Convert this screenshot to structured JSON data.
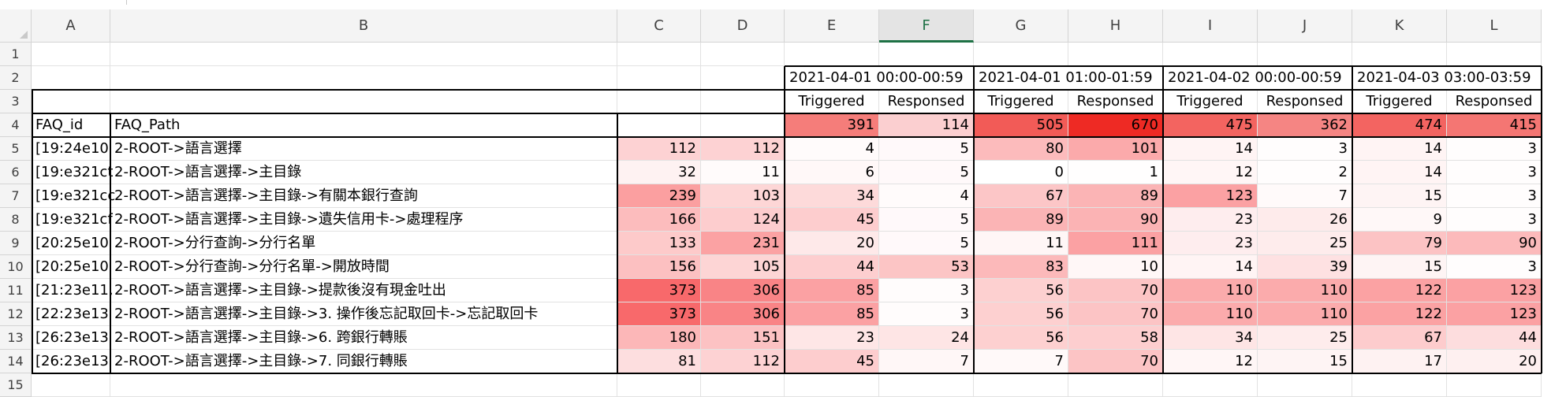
{
  "columns": [
    "A",
    "B",
    "C",
    "D",
    "E",
    "F",
    "G",
    "H",
    "I",
    "J",
    "K",
    "L"
  ],
  "selected_column": "F",
  "row_numbers": [
    "1",
    "2",
    "3",
    "4",
    "5",
    "6",
    "7",
    "8",
    "9",
    "10",
    "11",
    "12",
    "13",
    "14",
    "15"
  ],
  "periods": [
    "2021-04-01 00:00-00:59",
    "2021-04-01 01:00-01:59",
    "2021-04-02 00:00-00:59",
    "2021-04-03 03:00-03:59"
  ],
  "metrics": [
    "Triggered",
    "Responsed"
  ],
  "header": {
    "faq_id": "FAQ_id",
    "faq_path": "FAQ_Path"
  },
  "totals": [
    "391",
    "114",
    "505",
    "670",
    "475",
    "362",
    "474",
    "415"
  ],
  "rows": [
    {
      "id": "[19:24e10",
      "path": "2-ROOT->語言選擇",
      "c": "112",
      "d": "112",
      "vals": [
        "4",
        "5",
        "80",
        "101",
        "14",
        "3",
        "14",
        "3"
      ]
    },
    {
      "id": "[19:e321ct",
      "path": "2-ROOT->語言選擇->主目錄",
      "c": "32",
      "d": "11",
      "vals": [
        "6",
        "5",
        "0",
        "1",
        "12",
        "2",
        "14",
        "3"
      ]
    },
    {
      "id": "[19:e321cc",
      "path": "2-ROOT->語言選擇->主目錄->有關本銀行查詢",
      "c": "239",
      "d": "103",
      "vals": [
        "34",
        "4",
        "67",
        "89",
        "123",
        "7",
        "15",
        "3"
      ]
    },
    {
      "id": "[19:e321cf",
      "path": "2-ROOT->語言選擇->主目錄->遺失信用卡->處理程序",
      "c": "166",
      "d": "124",
      "vals": [
        "45",
        "5",
        "89",
        "90",
        "23",
        "26",
        "9",
        "3"
      ]
    },
    {
      "id": "[20:25e10",
      "path": "2-ROOT->分行查詢->分行名單",
      "c": "133",
      "d": "231",
      "vals": [
        "20",
        "5",
        "11",
        "111",
        "23",
        "25",
        "79",
        "90"
      ]
    },
    {
      "id": "[20:25e10",
      "path": "2-ROOT->分行查詢->分行名單->開放時間",
      "c": "156",
      "d": "105",
      "vals": [
        "44",
        "53",
        "83",
        "10",
        "14",
        "39",
        "15",
        "3"
      ]
    },
    {
      "id": "[21:23e11,",
      "path": "2-ROOT->語言選擇->主目錄->提款後沒有現金吐出",
      "c": "373",
      "d": "306",
      "vals": [
        "85",
        "3",
        "56",
        "70",
        "110",
        "110",
        "122",
        "123"
      ]
    },
    {
      "id": "[22:23e13",
      "path": "2-ROOT->語言選擇->主目錄->3. 操作後忘記取回卡->忘記取回卡",
      "c": "373",
      "d": "306",
      "vals": [
        "85",
        "3",
        "56",
        "70",
        "110",
        "110",
        "122",
        "123"
      ]
    },
    {
      "id": "[26:23e13",
      "path": "2-ROOT->語言選擇->主目錄->6. 跨銀行轉賬",
      "c": "180",
      "d": "151",
      "vals": [
        "23",
        "24",
        "56",
        "58",
        "34",
        "25",
        "67",
        "44"
      ]
    },
    {
      "id": "[26:23e13",
      "path": "2-ROOT->語言選擇->主目錄->7. 同銀行轉賬",
      "c": "81",
      "d": "112",
      "vals": [
        "45",
        "7",
        "7",
        "70",
        "12",
        "15",
        "17",
        "20"
      ]
    }
  ],
  "heat": {
    "low": "#ffffff",
    "high": "#f8696b",
    "totals_low": "#fbcfd0",
    "totals_high": "#ee2a24"
  }
}
